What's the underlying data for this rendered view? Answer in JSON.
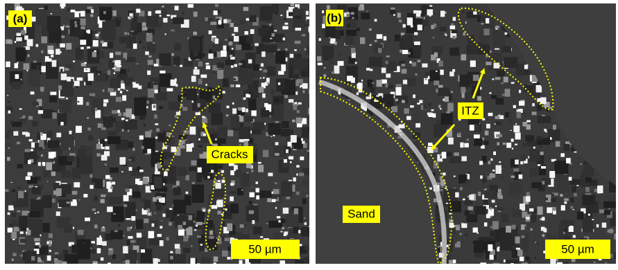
{
  "panels": [
    {
      "label": "(a)",
      "annotations": [
        "Cracks"
      ],
      "scale_bar": "50 µm"
    },
    {
      "label": "(b)",
      "annotations": [
        "ITZ",
        "Sand"
      ],
      "scale_bar": "50 µm"
    }
  ]
}
